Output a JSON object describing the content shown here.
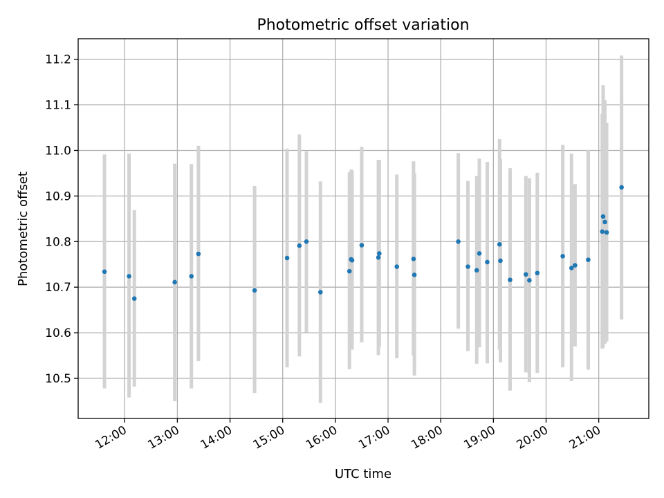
{
  "chart_data": {
    "type": "scatter",
    "title": "Photometric offset variation",
    "xlabel": "UTC time",
    "ylabel": "Photometric offset",
    "x_ticks": [
      "12:00",
      "13:00",
      "14:00",
      "15:00",
      "16:00",
      "17:00",
      "18:00",
      "19:00",
      "20:00",
      "21:00"
    ],
    "y_ticks": [
      "10.5",
      "10.6",
      "10.7",
      "10.8",
      "10.9",
      "11.0",
      "11.1",
      "11.2"
    ],
    "y_tick_values": [
      10.5,
      10.6,
      10.7,
      10.8,
      10.9,
      11.0,
      11.1,
      11.2
    ],
    "xlim": [
      "11:07",
      "21:57"
    ],
    "ylim": [
      10.412,
      11.245
    ],
    "grid": true,
    "colors": {
      "point": "#1f77b4",
      "errorbar": "#d3d3d3"
    },
    "points": [
      {
        "x": "11:37",
        "y": 10.734,
        "ylow": 10.478,
        "yhigh": 10.991
      },
      {
        "x": "12:05",
        "y": 10.724,
        "ylow": 10.458,
        "yhigh": 10.993
      },
      {
        "x": "12:11",
        "y": 10.675,
        "ylow": 10.482,
        "yhigh": 10.869
      },
      {
        "x": "12:57",
        "y": 10.711,
        "ylow": 10.45,
        "yhigh": 10.971
      },
      {
        "x": "13:16",
        "y": 10.724,
        "ylow": 10.478,
        "yhigh": 10.97
      },
      {
        "x": "13:24",
        "y": 10.773,
        "ylow": 10.538,
        "yhigh": 11.01
      },
      {
        "x": "14:28",
        "y": 10.693,
        "ylow": 10.468,
        "yhigh": 10.922
      },
      {
        "x": "15:05",
        "y": 10.764,
        "ylow": 10.524,
        "yhigh": 11.004
      },
      {
        "x": "15:19",
        "y": 10.791,
        "ylow": 10.548,
        "yhigh": 11.035
      },
      {
        "x": "15:27",
        "y": 10.8,
        "ylow": 10.601,
        "yhigh": 10.998
      },
      {
        "x": "15:43",
        "y": 10.689,
        "ylow": 10.446,
        "yhigh": 10.932
      },
      {
        "x": "16:16",
        "y": 10.735,
        "ylow": 10.52,
        "yhigh": 10.952
      },
      {
        "x": "16:18",
        "y": 10.761,
        "ylow": 10.563,
        "yhigh": 10.958
      },
      {
        "x": "16:19",
        "y": 10.759,
        "ylow": 10.563,
        "yhigh": 10.956
      },
      {
        "x": "16:30",
        "y": 10.792,
        "ylow": 10.579,
        "yhigh": 11.008
      },
      {
        "x": "16:49",
        "y": 10.765,
        "ylow": 10.551,
        "yhigh": 10.979
      },
      {
        "x": "16:50",
        "y": 10.774,
        "ylow": 10.57,
        "yhigh": 10.979
      },
      {
        "x": "17:10",
        "y": 10.745,
        "ylow": 10.544,
        "yhigh": 10.947
      },
      {
        "x": "17:29",
        "y": 10.762,
        "ylow": 10.55,
        "yhigh": 10.976
      },
      {
        "x": "17:30",
        "y": 10.727,
        "ylow": 10.506,
        "yhigh": 10.95
      },
      {
        "x": "18:20",
        "y": 10.8,
        "ylow": 10.609,
        "yhigh": 10.994
      },
      {
        "x": "18:31",
        "y": 10.745,
        "ylow": 10.56,
        "yhigh": 10.933
      },
      {
        "x": "18:41",
        "y": 10.737,
        "ylow": 10.532,
        "yhigh": 10.944
      },
      {
        "x": "18:44",
        "y": 10.774,
        "ylow": 10.568,
        "yhigh": 10.982
      },
      {
        "x": "18:53",
        "y": 10.755,
        "ylow": 10.533,
        "yhigh": 10.975
      },
      {
        "x": "19:07",
        "y": 10.794,
        "ylow": 10.563,
        "yhigh": 11.025
      },
      {
        "x": "19:08",
        "y": 10.758,
        "ylow": 10.535,
        "yhigh": 10.981
      },
      {
        "x": "19:19",
        "y": 10.716,
        "ylow": 10.473,
        "yhigh": 10.961
      },
      {
        "x": "19:37",
        "y": 10.728,
        "ylow": 10.513,
        "yhigh": 10.944
      },
      {
        "x": "19:41",
        "y": 10.715,
        "ylow": 10.492,
        "yhigh": 10.939
      },
      {
        "x": "19:50",
        "y": 10.731,
        "ylow": 10.512,
        "yhigh": 10.951
      },
      {
        "x": "20:19",
        "y": 10.768,
        "ylow": 10.524,
        "yhigh": 11.012
      },
      {
        "x": "20:29",
        "y": 10.742,
        "ylow": 10.494,
        "yhigh": 10.993
      },
      {
        "x": "20:33",
        "y": 10.748,
        "ylow": 10.57,
        "yhigh": 10.926
      },
      {
        "x": "20:48",
        "y": 10.76,
        "ylow": 10.519,
        "yhigh": 11.001
      },
      {
        "x": "21:04",
        "y": 10.822,
        "ylow": 10.565,
        "yhigh": 11.08
      },
      {
        "x": "21:05",
        "y": 10.855,
        "ylow": 10.568,
        "yhigh": 11.143
      },
      {
        "x": "21:07",
        "y": 10.843,
        "ylow": 10.576,
        "yhigh": 11.11
      },
      {
        "x": "21:09",
        "y": 10.82,
        "ylow": 10.581,
        "yhigh": 11.06
      },
      {
        "x": "21:26",
        "y": 10.919,
        "ylow": 10.629,
        "yhigh": 11.208
      }
    ]
  }
}
